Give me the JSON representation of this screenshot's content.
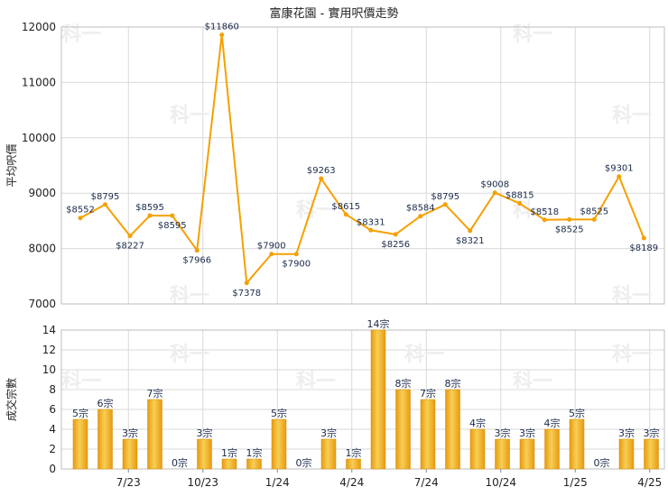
{
  "chart_data": [
    {
      "type": "line",
      "title": "富康花園 - 實用呎價走勢",
      "ylabel": "平均呎價",
      "ylim": [
        7000,
        12000
      ],
      "yticks": [
        7000,
        8000,
        9000,
        10000,
        11000,
        12000
      ],
      "color": "#f5a000",
      "series": [
        {
          "values": [
            8552,
            8795,
            8227,
            8595,
            8595,
            7966,
            11860,
            7378,
            7900,
            7900,
            9263,
            8615,
            8331,
            8256,
            8584,
            8795,
            8321,
            9008,
            8815,
            8518,
            8525,
            8525,
            9301,
            8189
          ],
          "labels": [
            "$8552",
            "$8795",
            "$8227",
            "$8595",
            "$8595",
            "$7966",
            "$11860",
            "$7378",
            "$7900",
            "$7900",
            "$9263",
            "$8615",
            "$8331",
            "$8256",
            "$8584",
            "$8795",
            "$8321",
            "$9008",
            "$8815",
            "$8518",
            "$8525",
            "$8525",
            "$9301",
            "$8189"
          ]
        }
      ],
      "x_positions": [
        0.5,
        1.5,
        2.5,
        3.3,
        4.2,
        5.2,
        6.2,
        7.2,
        8.2,
        9.2,
        10.2,
        11.2,
        12.2,
        13.2,
        14.2,
        15.2,
        16.2,
        17.2,
        18.2,
        19.2,
        20.2,
        21.2,
        22.2,
        23.2
      ],
      "xlim": [
        0,
        23.5
      ]
    },
    {
      "type": "bar",
      "ylabel": "成交宗數",
      "ylim": [
        0,
        14
      ],
      "yticks": [
        0,
        2,
        4,
        6,
        8,
        10,
        12,
        14
      ],
      "color": "#f0b020",
      "values": [
        5,
        6,
        3,
        7,
        0,
        3,
        1,
        1,
        5,
        0,
        3,
        1,
        14,
        8,
        7,
        8,
        4,
        3,
        3,
        4,
        5,
        0,
        3,
        3
      ],
      "labels": [
        "5宗",
        "6宗",
        "3宗",
        "7宗",
        "0宗",
        "3宗",
        "1宗",
        "1宗",
        "5宗",
        "0宗",
        "3宗",
        "1宗",
        "14宗",
        "8宗",
        "7宗",
        "8宗",
        "4宗",
        "3宗",
        "3宗",
        "4宗",
        "5宗",
        "0宗",
        "3宗",
        "3宗"
      ],
      "x_tick_labels": [
        "7/23",
        "10/23",
        "1/24",
        "4/24",
        "7/24",
        "10/24",
        "1/25",
        "4/25"
      ],
      "x_tick_positions": [
        2,
        5,
        8,
        11,
        14,
        17,
        20,
        23
      ]
    }
  ],
  "watermark": "科一"
}
